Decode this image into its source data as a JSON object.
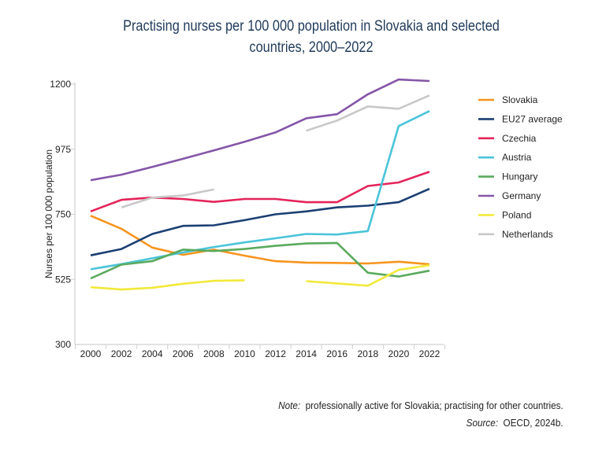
{
  "chart_data": {
    "type": "line",
    "title": "Practising nurses per 100 000 population in Slovakia and selected countries, 2000–2022",
    "xlabel": "",
    "ylabel": "Nurses per 100 000 population",
    "ylim": [
      300,
      1200
    ],
    "yticks": [
      300,
      525,
      750,
      975,
      1200
    ],
    "x": [
      2000,
      2002,
      2004,
      2006,
      2008,
      2010,
      2012,
      2014,
      2016,
      2018,
      2020,
      2022
    ],
    "xtick_labels": [
      "2000",
      "2002",
      "2004",
      "2006",
      "2008",
      "2010",
      "2012",
      "2014",
      "2016",
      "2018",
      "2020",
      "2022"
    ],
    "legend_position": "right",
    "series": [
      {
        "name": "Slovakia",
        "color": "#f7941d",
        "values": [
          745,
          700,
          635,
          610,
          628,
          607,
          588,
          583,
          582,
          580,
          586,
          577
        ]
      },
      {
        "name": "EU27 average",
        "color": "#1b3f73",
        "values": [
          608,
          630,
          682,
          710,
          712,
          730,
          750,
          760,
          774,
          780,
          792,
          838
        ]
      },
      {
        "name": "Czechia",
        "color": "#e4245a",
        "values": [
          760,
          800,
          808,
          803,
          793,
          803,
          803,
          792,
          792,
          848,
          860,
          897
        ]
      },
      {
        "name": "Austria",
        "color": "#4ac4d9",
        "values": [
          560,
          578,
          598,
          618,
          637,
          653,
          667,
          682,
          680,
          692,
          1055,
          1107
        ]
      },
      {
        "name": "Hungary",
        "color": "#5aaa5e",
        "values": [
          528,
          576,
          588,
          628,
          623,
          630,
          641,
          649,
          651,
          548,
          535,
          555
        ]
      },
      {
        "name": "Germany",
        "color": "#8455a8",
        "values": [
          868,
          887,
          914,
          942,
          971,
          1001,
          1033,
          1082,
          1096,
          1165,
          1216,
          1211
        ]
      },
      {
        "name": "Poland",
        "color": "#f2e93a",
        "values": [
          498,
          490,
          496,
          510,
          520,
          522,
          null,
          519,
          511,
          503,
          558,
          574
        ]
      },
      {
        "name": "Netherlands",
        "color": "#c8c8c8",
        "values": [
          null,
          774,
          808,
          815,
          836,
          null,
          null,
          1039,
          1074,
          1123,
          1115,
          1161
        ]
      }
    ]
  },
  "notes": {
    "note_label": "Note:",
    "note_text": "professionally active for Slovakia; practising for other countries.",
    "source_label": "Source:",
    "source_text": "OECD, 2024b."
  }
}
